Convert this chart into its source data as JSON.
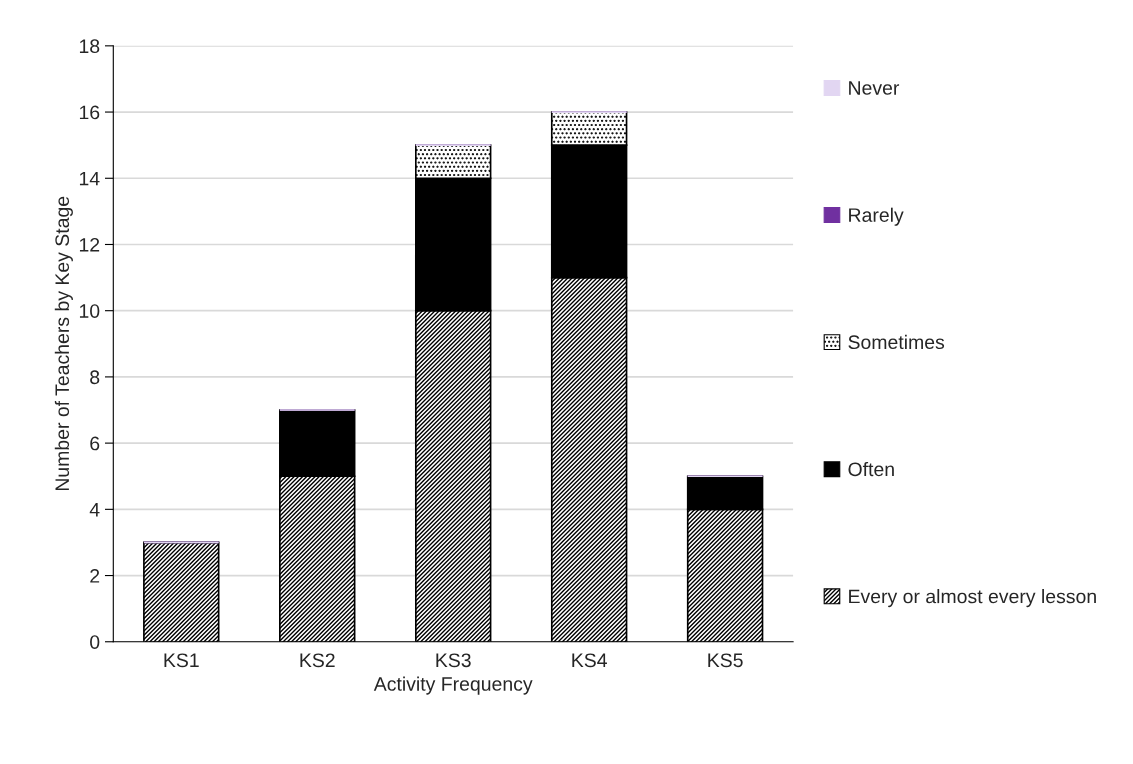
{
  "chart_data": {
    "type": "bar",
    "stacked": true,
    "xlabel": "Activity Frequency",
    "ylabel": "Number of Teachers by Key Stage",
    "categories": [
      "KS1",
      "KS2",
      "KS3",
      "KS4",
      "KS5"
    ],
    "series": [
      {
        "name": "Every or almost every lesson",
        "color": "#000000",
        "values": [
          3,
          5,
          10,
          11,
          4
        ]
      },
      {
        "name": "Often",
        "color": "#000000",
        "values": [
          0,
          2,
          4,
          4,
          1
        ]
      },
      {
        "name": "Sometimes",
        "color": "#000000",
        "values": [
          0,
          0,
          1,
          1,
          0
        ]
      },
      {
        "name": "Rarely",
        "color": "#7030a0",
        "values": [
          0,
          0,
          0,
          0,
          0
        ]
      },
      {
        "name": "Never",
        "color": "#e2d6f2",
        "values": [
          0,
          0,
          0,
          0,
          0
        ]
      }
    ],
    "ylim": [
      0,
      18
    ],
    "yticks": [
      0,
      2,
      4,
      6,
      8,
      10,
      12,
      14,
      16,
      18
    ],
    "grid": "y",
    "legend": "right"
  }
}
